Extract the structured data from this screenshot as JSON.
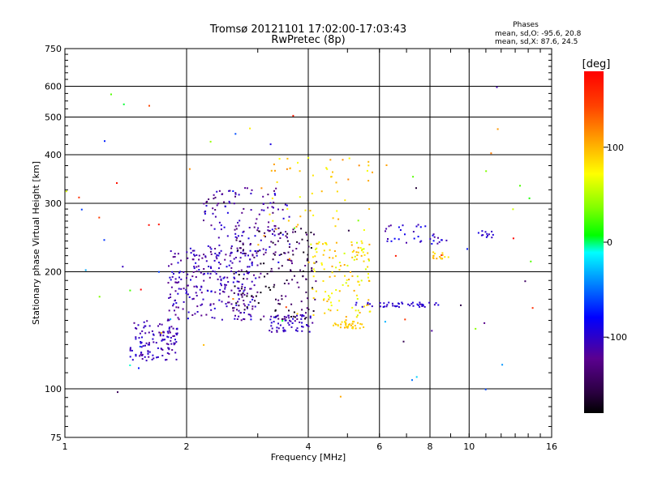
{
  "chart_data": {
    "type": "scatter",
    "title": "Tromsø 20121101 17:02:00-17:03:43",
    "subtitle": "RwPretec (8p)",
    "xlabel": "Frequency [MHz]",
    "ylabel": "Stationary phase Virtual Height [km]",
    "x_scale": "log",
    "y_scale": "log",
    "xlim": [
      1,
      16
    ],
    "ylim": [
      75,
      750
    ],
    "x_ticks": [
      "1",
      "2",
      "4",
      "6",
      "8",
      "10",
      "16"
    ],
    "y_ticks": [
      "75",
      "100",
      "200",
      "300",
      "400",
      "500",
      "600",
      "750"
    ],
    "grid": true,
    "stats": {
      "heading": "Phases",
      "line1": "mean, sd,O: -95.6, 20.8",
      "line2": "mean, sd,X:  87.6, 24.5"
    },
    "colorbar": {
      "label": "[deg]",
      "ticks": [
        "100",
        "0",
        "-100"
      ],
      "range": [
        -180,
        180
      ],
      "colormap": "rainbow"
    },
    "clusters": [
      {
        "f": [
          1.45,
          1.9
        ],
        "h": [
          118,
          150
        ],
        "phase": [
          -125,
          -95
        ],
        "count": 120
      },
      {
        "f": [
          1.8,
          3.0
        ],
        "h": [
          150,
          230
        ],
        "phase": [
          -130,
          -90
        ],
        "count": 260
      },
      {
        "f": [
          2.2,
          3.6
        ],
        "h": [
          220,
          330
        ],
        "phase": [
          -140,
          -90
        ],
        "count": 140
      },
      {
        "f": [
          2.6,
          4.2
        ],
        "h": [
          150,
          260
        ],
        "phase": [
          -180,
          -120
        ],
        "count": 170
      },
      {
        "f": [
          3.2,
          4.1
        ],
        "h": [
          140,
          155
        ],
        "phase": [
          -120,
          -95
        ],
        "count": 60
      },
      {
        "f": [
          4.0,
          5.7
        ],
        "h": [
          150,
          240
        ],
        "phase": [
          60,
          110
        ],
        "count": 110
      },
      {
        "f": [
          3.0,
          5.8
        ],
        "h": [
          200,
          400
        ],
        "phase": [
          70,
          120
        ],
        "count": 70
      },
      {
        "f": [
          4.6,
          5.5
        ],
        "h": [
          143,
          149
        ],
        "phase": [
          85,
          105
        ],
        "count": 35
      },
      {
        "f": [
          5.2,
          8.5
        ],
        "h": [
          162,
          167
        ],
        "phase": [
          -110,
          -90
        ],
        "count": 45
      },
      {
        "f": [
          6.2,
          8.8
        ],
        "h": [
          235,
          265
        ],
        "phase": [
          -120,
          -80
        ],
        "count": 35
      },
      {
        "f": [
          8.0,
          9.0
        ],
        "h": [
          215,
          225
        ],
        "phase": [
          80,
          110
        ],
        "count": 15
      },
      {
        "f": [
          10.5,
          12.0
        ],
        "h": [
          245,
          255
        ],
        "phase": [
          -110,
          -90
        ],
        "count": 12
      },
      {
        "f": [
          1.0,
          16.0
        ],
        "h": [
          90,
          600
        ],
        "phase": [
          -180,
          180
        ],
        "count": 70
      }
    ]
  }
}
